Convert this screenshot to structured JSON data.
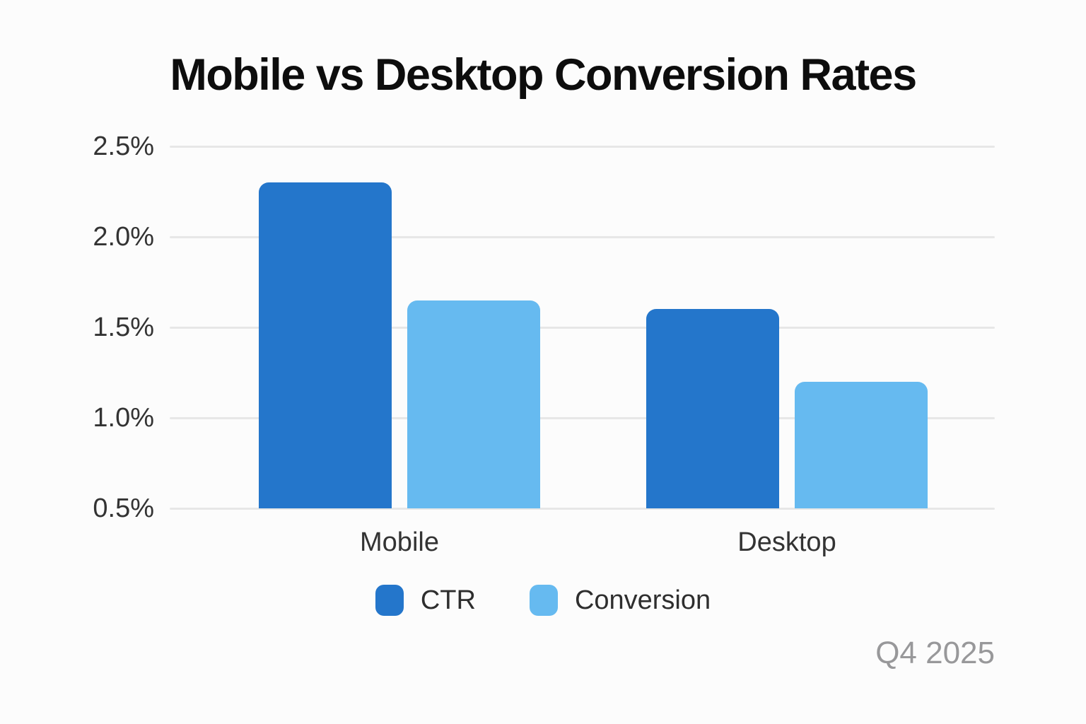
{
  "title": "Mobile vs Desktop Conversion Rates",
  "footnote": "Q4 2025",
  "colors": {
    "background": "#fcfcfc",
    "title_text": "#0d0d0d",
    "axis_text": "#333333",
    "legend_text": "#2e2e2e",
    "footnote_text": "#98989a",
    "gridline": "#e7e7e7",
    "ctr_blue": "#2476CB",
    "conversion_blue": "#66BAF0"
  },
  "legend": {
    "items": [
      {
        "label": "CTR",
        "color": "#2476CB"
      },
      {
        "label": "Conversion",
        "color": "#66BAF0"
      }
    ]
  },
  "chart_data": {
    "type": "bar",
    "title": "Mobile vs Desktop Conversion Rates",
    "categories": [
      "Mobile",
      "Desktop"
    ],
    "series": [
      {
        "name": "CTR",
        "color": "#2476CB",
        "values": [
          2.3,
          1.6
        ]
      },
      {
        "name": "Conversion",
        "color": "#66BAF0",
        "values": [
          1.65,
          1.2
        ]
      }
    ],
    "unit": "%",
    "xlabel": "",
    "ylabel": "",
    "y_axis": {
      "min": 0.5,
      "max": 2.5,
      "step": 0.5,
      "tick_labels_top_down": [
        "2.5%",
        "2.0%",
        "1.5%",
        "1.0%",
        "0.5%"
      ]
    },
    "grid": true,
    "legend_position": "bottom",
    "annotation": "Q4 2025"
  }
}
